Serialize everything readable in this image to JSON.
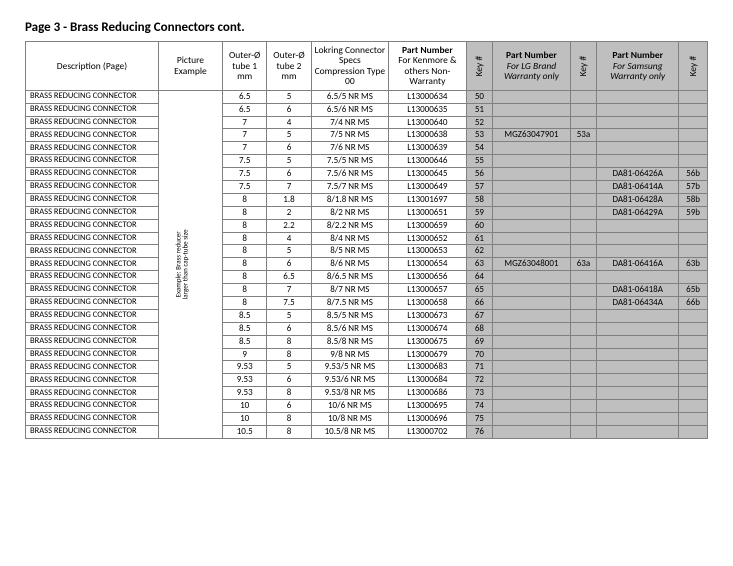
{
  "title": "Page 3 - Brass Reducing Connectors cont.",
  "headers": {
    "desc": "Description (Page)",
    "pic": "Picture Example",
    "od1": "Outer-Ø tube 1 mm",
    "od2": "Outer-Ø tube 2 mm",
    "spec": "Lokring Connector Specs Compression Type 00",
    "pn_kenmore_l1": "Part Number",
    "pn_kenmore_l2": "For Kenmore & others Non-Warranty",
    "key1": "Key #",
    "pn_lg_l1": "Part Number",
    "pn_lg_l2": "For LG Brand Warranty only",
    "key2": "Key #",
    "pn_sam_l1": "Part Number",
    "pn_sam_l2": "For Samsung Warranty only",
    "key3": "Key #"
  },
  "pic_caption_l1": "Example: Brass reducer",
  "pic_caption_l2": "larger than cap-tube size",
  "desc_text": "BRASS REDUCING CONNECTOR",
  "rows": [
    {
      "od1": "6.5",
      "od2": "5",
      "spec": "6.5/5 NR MS",
      "pn": "L13000634",
      "k": "50",
      "lg": "",
      "k2": "",
      "sam": "",
      "k3": ""
    },
    {
      "od1": "6.5",
      "od2": "6",
      "spec": "6.5/6 NR MS",
      "pn": "L13000635",
      "k": "51",
      "lg": "",
      "k2": "",
      "sam": "",
      "k3": ""
    },
    {
      "od1": "7",
      "od2": "4",
      "spec": "7/4 NR MS",
      "pn": "L13000640",
      "k": "52",
      "lg": "",
      "k2": "",
      "sam": "",
      "k3": ""
    },
    {
      "od1": "7",
      "od2": "5",
      "spec": "7/5 NR MS",
      "pn": "L13000638",
      "k": "53",
      "lg": "MGZ63047901",
      "k2": "53a",
      "sam": "",
      "k3": ""
    },
    {
      "od1": "7",
      "od2": "6",
      "spec": "7/6 NR MS",
      "pn": "L13000639",
      "k": "54",
      "lg": "",
      "k2": "",
      "sam": "",
      "k3": ""
    },
    {
      "od1": "7.5",
      "od2": "5",
      "spec": "7.5/5 NR MS",
      "pn": "L13000646",
      "k": "55",
      "lg": "",
      "k2": "",
      "sam": "",
      "k3": ""
    },
    {
      "od1": "7.5",
      "od2": "6",
      "spec": "7.5/6 NR MS",
      "pn": "L13000645",
      "k": "56",
      "lg": "",
      "k2": "",
      "sam": "DA81-06426A",
      "k3": "56b"
    },
    {
      "od1": "7.5",
      "od2": "7",
      "spec": "7.5/7 NR MS",
      "pn": "L13000649",
      "k": "57",
      "lg": "",
      "k2": "",
      "sam": "DA81-06414A",
      "k3": "57b"
    },
    {
      "od1": "8",
      "od2": "1.8",
      "spec": "8/1.8 NR MS",
      "pn": "L13001697",
      "k": "58",
      "lg": "",
      "k2": "",
      "sam": "DA81-06428A",
      "k3": "58b"
    },
    {
      "od1": "8",
      "od2": "2",
      "spec": "8/2 NR MS",
      "pn": "L13000651",
      "k": "59",
      "lg": "",
      "k2": "",
      "sam": "DA81-06429A",
      "k3": "59b"
    },
    {
      "od1": "8",
      "od2": "2.2",
      "spec": "8/2.2 NR MS",
      "pn": "L13000659",
      "k": "60",
      "lg": "",
      "k2": "",
      "sam": "",
      "k3": ""
    },
    {
      "od1": "8",
      "od2": "4",
      "spec": "8/4 NR MS",
      "pn": "L13000652",
      "k": "61",
      "lg": "",
      "k2": "",
      "sam": "",
      "k3": ""
    },
    {
      "od1": "8",
      "od2": "5",
      "spec": "8/5 NR MS",
      "pn": "L13000653",
      "k": "62",
      "lg": "",
      "k2": "",
      "sam": "",
      "k3": ""
    },
    {
      "od1": "8",
      "od2": "6",
      "spec": "8/6 NR MS",
      "pn": "L13000654",
      "k": "63",
      "lg": "MGZ63048001",
      "k2": "63a",
      "sam": "DA81-06416A",
      "k3": "63b"
    },
    {
      "od1": "8",
      "od2": "6.5",
      "spec": "8/6.5 NR MS",
      "pn": "L13000656",
      "k": "64",
      "lg": "",
      "k2": "",
      "sam": "",
      "k3": ""
    },
    {
      "od1": "8",
      "od2": "7",
      "spec": "8/7 NR MS",
      "pn": "L13000657",
      "k": "65",
      "lg": "",
      "k2": "",
      "sam": "DA81-06418A",
      "k3": "65b"
    },
    {
      "od1": "8",
      "od2": "7.5",
      "spec": "8/7.5 NR MS",
      "pn": "L13000658",
      "k": "66",
      "lg": "",
      "k2": "",
      "sam": "DA81-06434A",
      "k3": "66b"
    },
    {
      "od1": "8.5",
      "od2": "5",
      "spec": "8.5/5 NR MS",
      "pn": "L13000673",
      "k": "67",
      "lg": "",
      "k2": "",
      "sam": "",
      "k3": ""
    },
    {
      "od1": "8.5",
      "od2": "6",
      "spec": "8.5/6 NR MS",
      "pn": "L13000674",
      "k": "68",
      "lg": "",
      "k2": "",
      "sam": "",
      "k3": ""
    },
    {
      "od1": "8.5",
      "od2": "8",
      "spec": "8.5/8 NR MS",
      "pn": "L13000675",
      "k": "69",
      "lg": "",
      "k2": "",
      "sam": "",
      "k3": ""
    },
    {
      "od1": "9",
      "od2": "8",
      "spec": "9/8 NR MS",
      "pn": "L13000679",
      "k": "70",
      "lg": "",
      "k2": "",
      "sam": "",
      "k3": ""
    },
    {
      "od1": "9.53",
      "od2": "5",
      "spec": "9.53/5 NR MS",
      "pn": "L13000683",
      "k": "71",
      "lg": "",
      "k2": "",
      "sam": "",
      "k3": ""
    },
    {
      "od1": "9.53",
      "od2": "6",
      "spec": "9.53/6 NR MS",
      "pn": "L13000684",
      "k": "72",
      "lg": "",
      "k2": "",
      "sam": "",
      "k3": ""
    },
    {
      "od1": "9.53",
      "od2": "8",
      "spec": "9.53/8 NR MS",
      "pn": "L13000686",
      "k": "73",
      "lg": "",
      "k2": "",
      "sam": "",
      "k3": ""
    },
    {
      "od1": "10",
      "od2": "6",
      "spec": "10/6 NR MS",
      "pn": "L13000695",
      "k": "74",
      "lg": "",
      "k2": "",
      "sam": "",
      "k3": ""
    },
    {
      "od1": "10",
      "od2": "8",
      "spec": "10/8 NR MS",
      "pn": "L13000696",
      "k": "75",
      "lg": "",
      "k2": "",
      "sam": "",
      "k3": ""
    },
    {
      "od1": "10.5",
      "od2": "8",
      "spec": "10.5/8 NR MS",
      "pn": "L13000702",
      "k": "76",
      "lg": "",
      "k2": "",
      "sam": "",
      "k3": ""
    }
  ],
  "style": {
    "shaded_bg": "#bfbfbf",
    "border": "#808080",
    "font": "Calibri"
  }
}
